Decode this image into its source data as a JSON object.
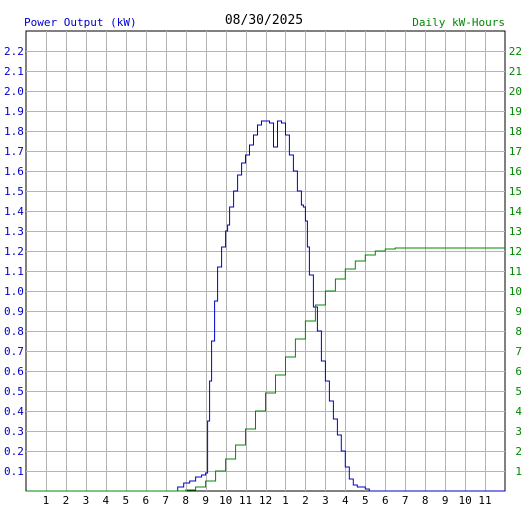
{
  "chart_data": {
    "type": "line",
    "title": "08/30/2025",
    "left_axis_label": "Power Output (kW)",
    "right_axis_label": "Daily kW-Hours",
    "x_ticks": [
      "1",
      "2",
      "3",
      "4",
      "5",
      "6",
      "7",
      "8",
      "9",
      "10",
      "11",
      "12",
      "1",
      "2",
      "3",
      "4",
      "5",
      "6",
      "7",
      "8",
      "9",
      "10",
      "11"
    ],
    "x_range_hours": [
      0,
      24
    ],
    "left_ylim": [
      0,
      2.3
    ],
    "left_ticks": [
      "0.1",
      "0.2",
      "0.3",
      "0.4",
      "0.5",
      "0.6",
      "0.7",
      "0.8",
      "0.9",
      "1.0",
      "1.1",
      "1.2",
      "1.3",
      "1.4",
      "1.5",
      "1.6",
      "1.7",
      "1.8",
      "1.9",
      "2.0",
      "2.1",
      "2.2"
    ],
    "right_ylim": [
      0,
      23
    ],
    "right_ticks": [
      "1",
      "2",
      "3",
      "4",
      "5",
      "6",
      "7",
      "8",
      "9",
      "10",
      "11",
      "12",
      "13",
      "14",
      "15",
      "16",
      "17",
      "18",
      "19",
      "20",
      "21",
      "22"
    ],
    "grid": true,
    "colors": {
      "power": "#0000cc",
      "energy": "#008800",
      "left_axis": "#0000cc",
      "right_axis": "#008800"
    },
    "series": [
      {
        "name": "Power Output (kW)",
        "axis": "left",
        "x": [
          0,
          7.5,
          7.6,
          7.9,
          8.2,
          8.5,
          8.8,
          9.0,
          9.1,
          9.2,
          9.3,
          9.45,
          9.6,
          9.8,
          10.0,
          10.1,
          10.2,
          10.4,
          10.6,
          10.8,
          11.0,
          11.2,
          11.4,
          11.6,
          11.8,
          12.0,
          12.2,
          12.4,
          12.6,
          12.8,
          13.0,
          13.2,
          13.4,
          13.6,
          13.8,
          13.9,
          14.0,
          14.1,
          14.2,
          14.4,
          14.6,
          14.8,
          15.0,
          15.2,
          15.4,
          15.6,
          15.8,
          16.0,
          16.2,
          16.4,
          16.6,
          16.8,
          17.0,
          17.2,
          17.4,
          17.6,
          17.8,
          18.0,
          18.2,
          18.4,
          18.6,
          18.8,
          19.0,
          19.5,
          20.0,
          24
        ],
        "y": [
          0,
          0,
          0.02,
          0.04,
          0.05,
          0.07,
          0.08,
          0.09,
          0.35,
          0.55,
          0.75,
          0.95,
          1.12,
          1.22,
          1.3,
          1.33,
          1.42,
          1.5,
          1.58,
          1.64,
          1.68,
          1.73,
          1.78,
          1.83,
          1.85,
          1.85,
          1.84,
          1.72,
          1.85,
          1.84,
          1.78,
          1.68,
          1.6,
          1.5,
          1.43,
          1.42,
          1.35,
          1.22,
          1.08,
          0.92,
          0.8,
          0.65,
          0.55,
          0.45,
          0.36,
          0.28,
          0.2,
          0.12,
          0.06,
          0.03,
          0.02,
          0.02,
          0.01,
          0,
          0,
          0,
          0,
          0,
          0,
          0,
          0,
          0,
          0,
          0,
          0,
          0
        ]
      },
      {
        "name": "Daily kW-Hours",
        "axis": "right",
        "x": [
          0,
          7.5,
          8.0,
          8.5,
          9.0,
          9.5,
          10.0,
          10.5,
          11.0,
          11.5,
          12.0,
          12.5,
          13.0,
          13.5,
          14.0,
          14.5,
          15.0,
          15.5,
          16.0,
          16.5,
          17.0,
          17.5,
          18.0,
          18.5,
          19.0,
          19.5,
          20.0,
          24
        ],
        "y": [
          0,
          0,
          0.05,
          0.2,
          0.5,
          1.0,
          1.6,
          2.3,
          3.1,
          4.0,
          4.9,
          5.8,
          6.7,
          7.6,
          8.5,
          9.3,
          10.0,
          10.6,
          11.1,
          11.5,
          11.8,
          12.0,
          12.1,
          12.15,
          12.15,
          12.15,
          12.15,
          12.15
        ]
      }
    ]
  }
}
